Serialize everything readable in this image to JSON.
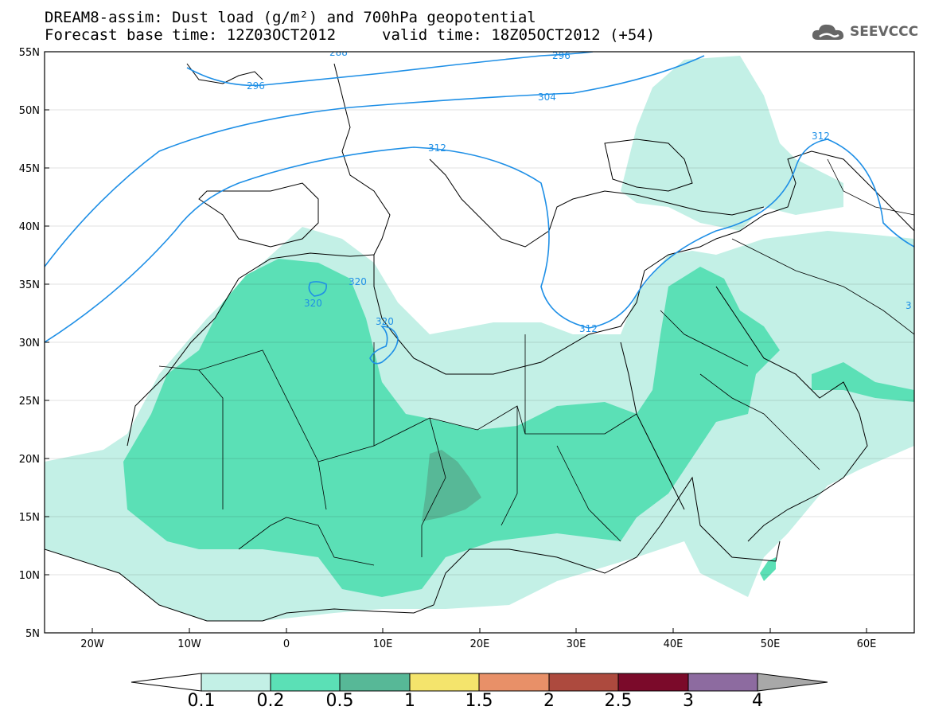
{
  "title": {
    "line1": "DREAM8-assim: Dust load (g/m²) and 700hPa geopotential",
    "line2_base": "Forecast base time: 12Z03OCT2012",
    "line2_valid": "valid time: 18Z05OCT2012 (+54)"
  },
  "logo": {
    "text": "SEEVCCC",
    "icon": "cloud-icon"
  },
  "axes": {
    "lat_labels": [
      "55N",
      "50N",
      "45N",
      "40N",
      "35N",
      "30N",
      "25N",
      "20N",
      "15N",
      "10N",
      "5N"
    ],
    "lon_labels": [
      "20W",
      "10W",
      "0",
      "10E",
      "20E",
      "30E",
      "40E",
      "50E",
      "60E"
    ]
  },
  "contours": {
    "labels": [
      "288",
      "296",
      "296",
      "304",
      "312",
      "312",
      "312",
      "320",
      "320",
      "320",
      "3"
    ]
  },
  "colorbar": {
    "labels": [
      "0.1",
      "0.2",
      "0.5",
      "1",
      "1.5",
      "2",
      "2.5",
      "3",
      "4"
    ],
    "colors": [
      "#ffffff",
      "#c3f0e6",
      "#5be0b6",
      "#57b897",
      "#f4e46c",
      "#e89068",
      "#ad4a3e",
      "#7b0a2a",
      "#8d6ba0",
      "#a8a8a8"
    ]
  },
  "map_colors": {
    "dust_low": "#c3f0e6",
    "dust_mid": "#5be0b6",
    "dust_high": "#57b897",
    "contour": "#1e8fe6"
  }
}
